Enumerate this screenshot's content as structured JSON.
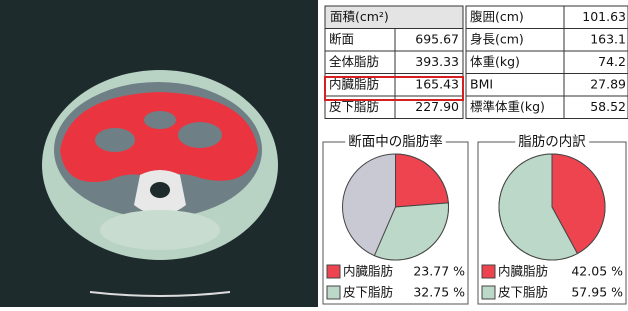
{
  "area_table": {
    "header": "面積(cm²)",
    "rows": [
      [
        "断面",
        "695.67"
      ],
      [
        "全体脂肪",
        "393.33"
      ],
      [
        "内臓脂肪",
        "165.43"
      ],
      [
        "皮下脂肪",
        "227.90"
      ]
    ]
  },
  "body_table": {
    "rows": [
      [
        "腹囲(cm)",
        "101.63"
      ],
      [
        "身長(cm)",
        "163.1"
      ],
      [
        "体重(kg)",
        "74.2"
      ],
      [
        "BMI",
        "27.89"
      ],
      [
        "標準体重(kg)",
        "58.52"
      ]
    ]
  },
  "chart_data": [
    {
      "type": "pie",
      "title": "断面中の脂肪率",
      "categories": [
        "内臓脂肪",
        "皮下脂肪"
      ],
      "values": [
        23.77,
        32.75
      ],
      "value_labels": [
        "23.77 %",
        "32.75 %"
      ],
      "colors": [
        "#ee4450",
        "#bcd8c8"
      ]
    },
    {
      "type": "pie",
      "title": "脂肪の内訳",
      "categories": [
        "内臓脂肪",
        "皮下脂肪"
      ],
      "values": [
        42.05,
        57.95
      ],
      "value_labels": [
        "42.05 %",
        "57.95 %"
      ],
      "colors": [
        "#ee4450",
        "#bcd8c8"
      ]
    }
  ]
}
